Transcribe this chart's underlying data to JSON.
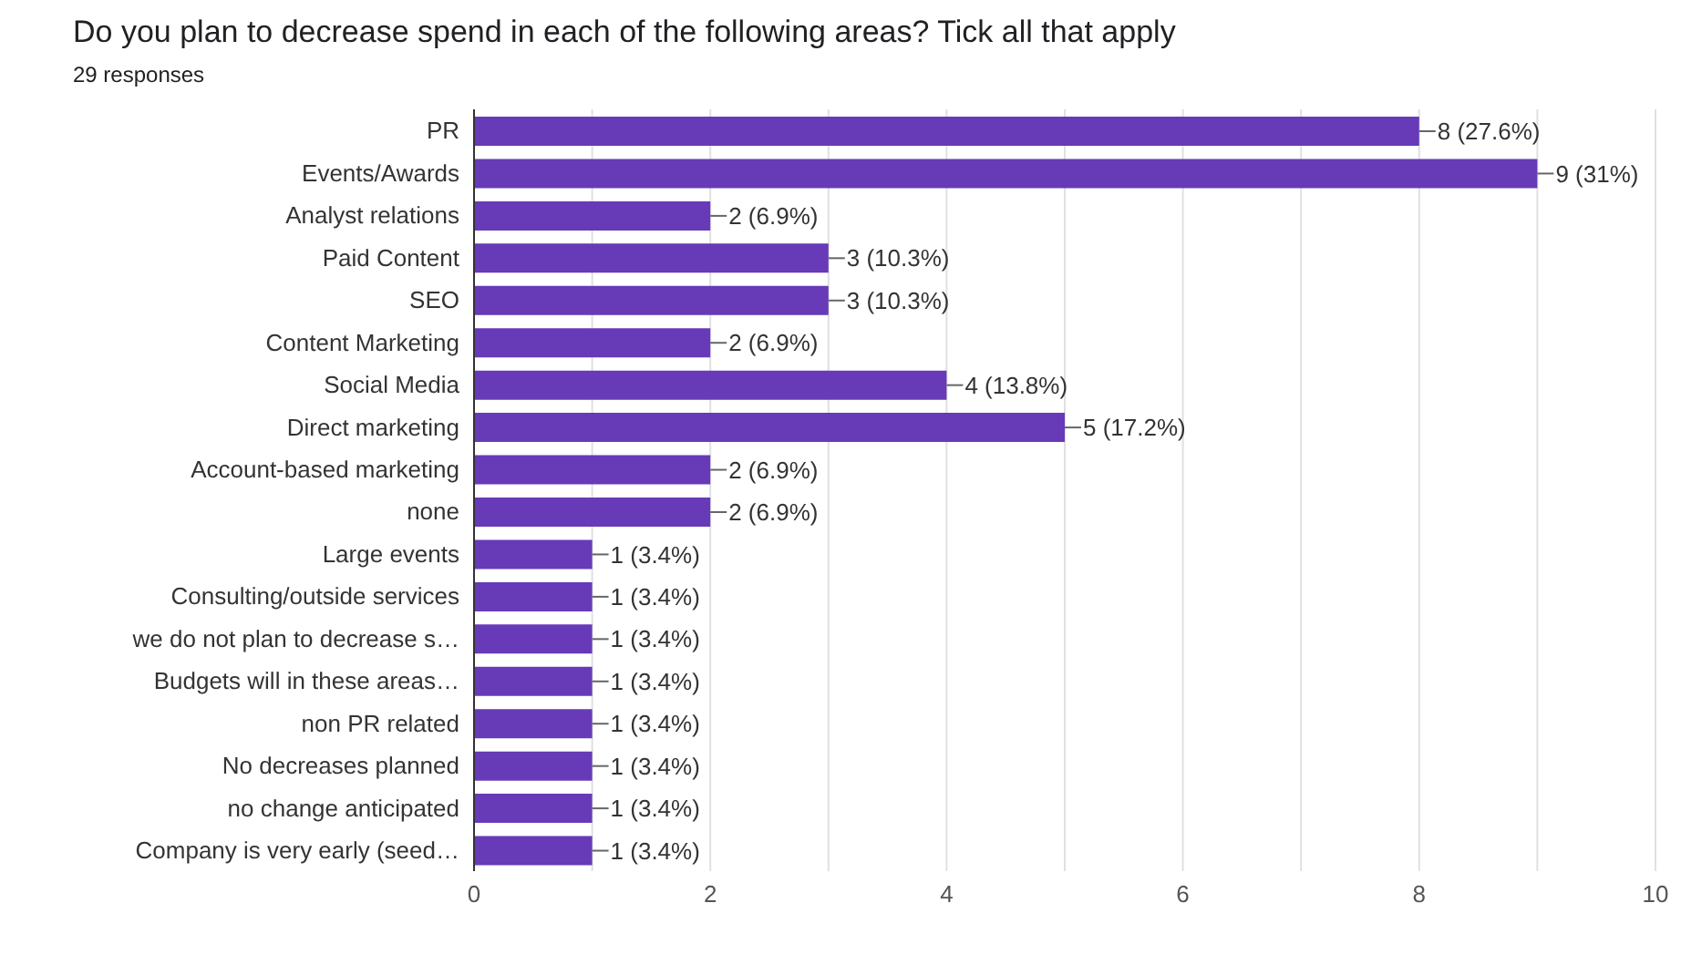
{
  "chart_data": {
    "type": "bar",
    "orientation": "horizontal",
    "title": "Do you plan to decrease spend in each of the following areas? Tick all that apply",
    "subtitle": "29 responses",
    "categories": [
      "PR",
      "Events/Awards",
      "Analyst relations",
      "Paid Content",
      "SEO",
      "Content Marketing",
      "Social Media",
      "Direct marketing",
      "Account-based marketing",
      "none",
      "Large events",
      "Consulting/outside services",
      "we do not plan to decrease s…",
      "Budgets will in these areas…",
      "non PR related",
      "No decreases planned",
      "no change anticipated",
      "Company is very early (seed…"
    ],
    "values": [
      8,
      9,
      2,
      3,
      3,
      2,
      4,
      5,
      2,
      2,
      1,
      1,
      1,
      1,
      1,
      1,
      1,
      1
    ],
    "value_labels": [
      "8 (27.6%)",
      "9 (31%)",
      "2 (6.9%)",
      "3 (10.3%)",
      "3 (10.3%)",
      "2 (6.9%)",
      "4 (13.8%)",
      "5 (17.2%)",
      "2 (6.9%)",
      "2 (6.9%)",
      "1 (3.4%)",
      "1 (3.4%)",
      "1 (3.4%)",
      "1 (3.4%)",
      "1 (3.4%)",
      "1 (3.4%)",
      "1 (3.4%)",
      "1 (3.4%)"
    ],
    "color": "#673ab7",
    "xlim": [
      0,
      10
    ],
    "xticks": [
      0,
      {
        "value": 1,
        "label": null
      },
      2,
      {
        "value": 3,
        "label": null
      },
      4,
      {
        "value": 5,
        "label": null
      },
      6,
      {
        "value": 7,
        "label": null
      },
      8,
      {
        "value": 9,
        "label": null
      },
      10
    ],
    "grid": "x"
  }
}
